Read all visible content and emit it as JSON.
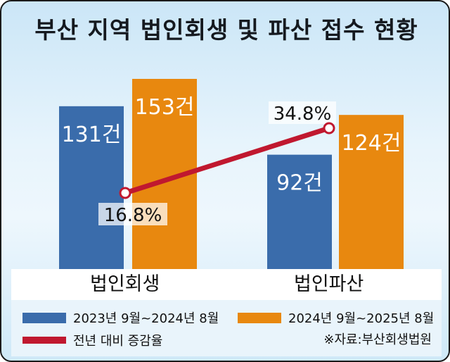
{
  "title": "부산 지역 법인회생 및 파산 접수 현황",
  "source": "※자료:부산회생법원",
  "colors": {
    "series_1": "#3a6cab",
    "series_2": "#e8880f",
    "change_line": "#c0182f",
    "background": "#dcefFa"
  },
  "chart_data": {
    "type": "bar",
    "title": "부산 지역 법인회생 및 파산 접수 현황",
    "categories": [
      "법인회생",
      "법인파산"
    ],
    "unit": "건",
    "ylim": [
      0,
      170
    ],
    "series": [
      {
        "name": "2023년 9월~2024년 8월",
        "values": [
          131,
          92
        ],
        "labels": [
          "131건",
          "92건"
        ]
      },
      {
        "name": "2024년 9월~2025년 8월",
        "values": [
          153,
          124
        ],
        "labels": [
          "153건",
          "124건"
        ]
      }
    ],
    "change_series": {
      "name": "전년 대비 증감율",
      "type": "line",
      "values": [
        16.8,
        34.8
      ],
      "labels": [
        "16.8%",
        "34.8%"
      ]
    },
    "legend_placement": "bottom",
    "grid": false
  }
}
